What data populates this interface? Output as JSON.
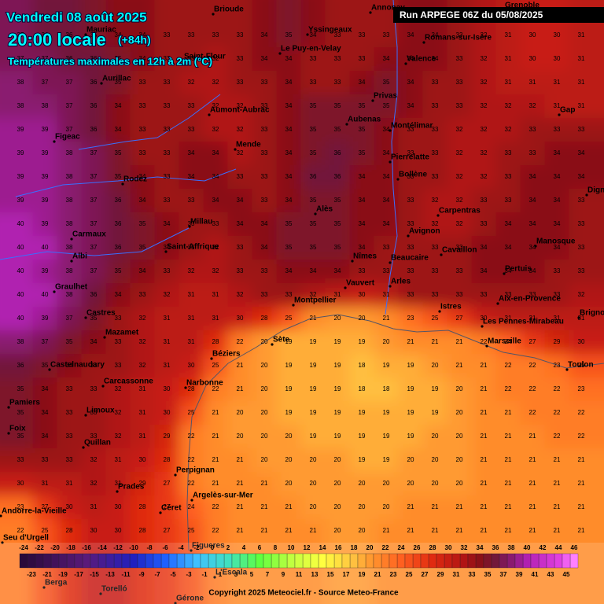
{
  "header": {
    "date": "Vendredi 08 août 2025",
    "time": "20:00 locale",
    "lead": "(+84h)",
    "subtitle": "Températures maximales en 12h à 2m (°C)",
    "run": "Run ARPEGE 06Z du 05/08/2025"
  },
  "footer": "Copyright 2025 Meteociel.fr - Source Meteo-France",
  "cities": [
    "Brioude",
    "Annonay",
    "Grenoble",
    "Yssingeaux",
    "Mauriac",
    "Romans-sur-Isère",
    "Saint-Flour",
    "Le Puy-en-Velay",
    "Valence",
    "Aurillac",
    "Privas",
    "Aumont-Aubrac",
    "Gap",
    "Aubenas",
    "Montélimar",
    "Figeac",
    "Mende",
    "Pierrelatte",
    "Bollène",
    "Rodez",
    "Digne",
    "Alès",
    "Carpentras",
    "Millau",
    "Carmaux",
    "Avignon",
    "Manosque",
    "Saint-Affrique",
    "Albi",
    "Cavaillon",
    "Nîmes",
    "Beaucaire",
    "Pertuis",
    "Vauvert",
    "Arles",
    "Graulhet",
    "Montpellier",
    "Aix-en-Provence",
    "Istres",
    "Castres",
    "Brignoles",
    "Les Pennes-Mirabeau",
    "Mazamet",
    "Sète",
    "Marseille",
    "Béziers",
    "Toulon",
    "Castelnaudary",
    "Carcassonne",
    "Narbonne",
    "Pamiers",
    "Limoux",
    "Foix",
    "Quillan",
    "Perpignan",
    "Prades",
    "Argelès-sur-Mer",
    "Andorre-la-Vieille",
    "Céret",
    "Seu d'Urgell",
    "Figueres",
    "L'Escala",
    "Berga",
    "Torelló",
    "Gérone"
  ],
  "grid": {
    "values": [
      [
        37,
        36,
        36,
        35,
        34,
        34,
        33,
        33,
        33,
        33,
        34,
        35,
        34,
        33,
        33,
        33,
        34,
        34,
        33,
        32,
        31,
        30,
        30,
        31
      ],
      [
        37,
        37,
        36,
        36,
        35,
        34,
        33,
        33,
        32,
        33,
        34,
        34,
        33,
        33,
        33,
        34,
        34,
        34,
        33,
        32,
        31,
        30,
        30,
        31
      ],
      [
        38,
        37,
        37,
        36,
        35,
        33,
        33,
        32,
        32,
        33,
        33,
        34,
        33,
        33,
        34,
        35,
        34,
        33,
        33,
        32,
        31,
        31,
        31,
        31
      ],
      [
        38,
        38,
        37,
        36,
        34,
        33,
        33,
        33,
        32,
        32,
        33,
        34,
        35,
        35,
        35,
        35,
        34,
        33,
        33,
        32,
        32,
        32,
        31,
        31
      ],
      [
        39,
        39,
        37,
        36,
        34,
        33,
        33,
        33,
        32,
        32,
        33,
        34,
        35,
        35,
        35,
        34,
        33,
        33,
        32,
        32,
        32,
        33,
        33,
        33
      ],
      [
        39,
        39,
        38,
        37,
        35,
        33,
        33,
        34,
        34,
        32,
        33,
        34,
        35,
        36,
        35,
        34,
        33,
        33,
        32,
        32,
        33,
        33,
        34,
        34
      ],
      [
        39,
        39,
        38,
        37,
        35,
        34,
        33,
        34,
        34,
        33,
        33,
        34,
        36,
        36,
        34,
        34,
        33,
        33,
        32,
        32,
        33,
        34,
        34,
        34
      ],
      [
        39,
        39,
        38,
        37,
        36,
        34,
        33,
        33,
        34,
        34,
        33,
        34,
        35,
        35,
        34,
        34,
        33,
        32,
        32,
        33,
        33,
        34,
        34,
        33
      ],
      [
        40,
        39,
        38,
        37,
        36,
        35,
        34,
        33,
        33,
        34,
        34,
        35,
        35,
        35,
        34,
        34,
        33,
        32,
        32,
        33,
        34,
        34,
        34,
        33
      ],
      [
        40,
        40,
        38,
        37,
        36,
        35,
        34,
        33,
        32,
        33,
        34,
        35,
        35,
        35,
        34,
        33,
        33,
        33,
        33,
        34,
        34,
        34,
        34,
        33
      ],
      [
        40,
        39,
        38,
        37,
        35,
        34,
        33,
        32,
        32,
        33,
        33,
        34,
        34,
        34,
        33,
        33,
        33,
        33,
        33,
        34,
        34,
        34,
        33,
        33
      ],
      [
        40,
        40,
        38,
        36,
        34,
        33,
        32,
        31,
        31,
        32,
        33,
        33,
        32,
        31,
        30,
        31,
        33,
        33,
        33,
        33,
        33,
        33,
        33,
        32
      ],
      [
        40,
        39,
        37,
        35,
        33,
        32,
        31,
        31,
        31,
        30,
        28,
        25,
        21,
        20,
        20,
        21,
        23,
        25,
        27,
        30,
        31,
        31,
        31,
        31
      ],
      [
        38,
        37,
        35,
        34,
        33,
        32,
        31,
        31,
        28,
        22,
        20,
        19,
        19,
        19,
        19,
        20,
        21,
        21,
        21,
        22,
        24,
        27,
        29,
        30
      ],
      [
        36,
        35,
        34,
        33,
        33,
        32,
        31,
        30,
        25,
        21,
        20,
        19,
        19,
        19,
        18,
        19,
        19,
        20,
        21,
        21,
        22,
        22,
        23,
        25
      ],
      [
        35,
        34,
        33,
        33,
        32,
        31,
        30,
        28,
        22,
        21,
        20,
        19,
        19,
        19,
        18,
        18,
        19,
        19,
        20,
        21,
        22,
        22,
        22,
        23
      ],
      [
        35,
        34,
        33,
        33,
        32,
        31,
        30,
        25,
        21,
        20,
        20,
        19,
        19,
        19,
        19,
        19,
        19,
        19,
        20,
        21,
        21,
        22,
        22,
        22
      ],
      [
        35,
        34,
        33,
        33,
        32,
        31,
        29,
        22,
        21,
        20,
        20,
        20,
        19,
        19,
        19,
        19,
        19,
        20,
        20,
        21,
        21,
        21,
        22,
        22
      ],
      [
        33,
        33,
        33,
        32,
        31,
        30,
        28,
        22,
        21,
        21,
        20,
        20,
        20,
        20,
        19,
        19,
        20,
        20,
        20,
        21,
        21,
        21,
        21,
        21
      ],
      [
        30,
        31,
        31,
        32,
        31,
        29,
        27,
        22,
        21,
        21,
        21,
        20,
        20,
        20,
        20,
        20,
        20,
        20,
        20,
        21,
        21,
        21,
        21,
        21
      ],
      [
        23,
        27,
        30,
        31,
        30,
        28,
        27,
        24,
        22,
        21,
        21,
        21,
        20,
        20,
        20,
        20,
        21,
        21,
        21,
        21,
        21,
        21,
        21,
        21
      ],
      [
        22,
        25,
        28,
        30,
        30,
        28,
        27,
        25,
        22,
        21,
        21,
        21,
        21,
        20,
        20,
        21,
        21,
        21,
        21,
        21,
        21,
        21,
        21,
        21
      ]
    ]
  },
  "legend": {
    "top_labels": [
      -24,
      -22,
      -20,
      -18,
      -16,
      -14,
      -12,
      -10,
      -8,
      -6,
      -4,
      -2,
      0,
      2,
      4,
      6,
      8,
      10,
      12,
      14,
      16,
      18,
      20,
      22,
      24,
      26,
      28,
      30,
      32,
      34,
      36,
      38,
      40,
      42,
      44,
      46
    ],
    "bottom_labels": [
      -23,
      -21,
      -19,
      -17,
      -15,
      -13,
      -11,
      -9,
      -7,
      -5,
      -3,
      -1,
      1,
      3,
      5,
      7,
      9,
      11,
      13,
      15,
      17,
      19,
      21,
      23,
      25,
      27,
      29,
      31,
      33,
      35,
      37,
      39,
      41,
      43,
      45
    ],
    "color_scale": [
      [
        -24,
        "#2a0a3a"
      ],
      [
        -16,
        "#5a1a7a"
      ],
      [
        -10,
        "#2020c0"
      ],
      [
        -6,
        "#2060ff"
      ],
      [
        -2,
        "#40c0ff"
      ],
      [
        2,
        "#40e0c0"
      ],
      [
        6,
        "#60ff40"
      ],
      [
        10,
        "#c0ff40"
      ],
      [
        14,
        "#ffff40"
      ],
      [
        18,
        "#ffc040"
      ],
      [
        20,
        "#ff9a30"
      ],
      [
        24,
        "#ff6020"
      ],
      [
        28,
        "#e02a10"
      ],
      [
        32,
        "#b01414"
      ],
      [
        34,
        "#8a1018"
      ],
      [
        36,
        "#72183a"
      ],
      [
        38,
        "#8a1a70"
      ],
      [
        40,
        "#b020b0"
      ],
      [
        44,
        "#e040e0"
      ],
      [
        46,
        "#ff80ff"
      ]
    ]
  }
}
